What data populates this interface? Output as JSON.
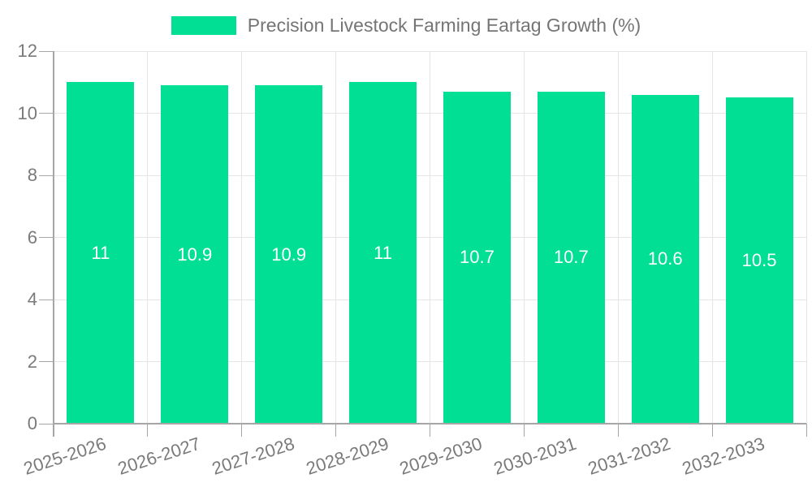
{
  "legend": {
    "label": "Precision Livestock Farming Eartag Growth (%)"
  },
  "chart_data": {
    "type": "bar",
    "title": "Precision Livestock Farming Eartag Growth (%)",
    "categories": [
      "2025-2026",
      "2026-2027",
      "2027-2028",
      "2028-2029",
      "2029-2030",
      "2030-2031",
      "2031-2032",
      "2032-2033"
    ],
    "values": [
      11,
      10.9,
      10.9,
      11,
      10.7,
      10.7,
      10.6,
      10.5
    ],
    "value_labels": [
      "11",
      "10.9",
      "10.9",
      "11",
      "10.7",
      "10.7",
      "10.6",
      "10.5"
    ],
    "xlabel": "",
    "ylabel": "",
    "ylim": [
      0,
      12
    ],
    "yticks": [
      0,
      2,
      4,
      6,
      8,
      10,
      12
    ],
    "grid": true,
    "legend_position": "top",
    "colors": {
      "bar": "#00df94",
      "axis": "#a6a6a6",
      "grid": "#e5e5e5",
      "tick_label": "#7a7a7a",
      "bar_label": "#ffffff",
      "legend_text": "#757575"
    }
  }
}
